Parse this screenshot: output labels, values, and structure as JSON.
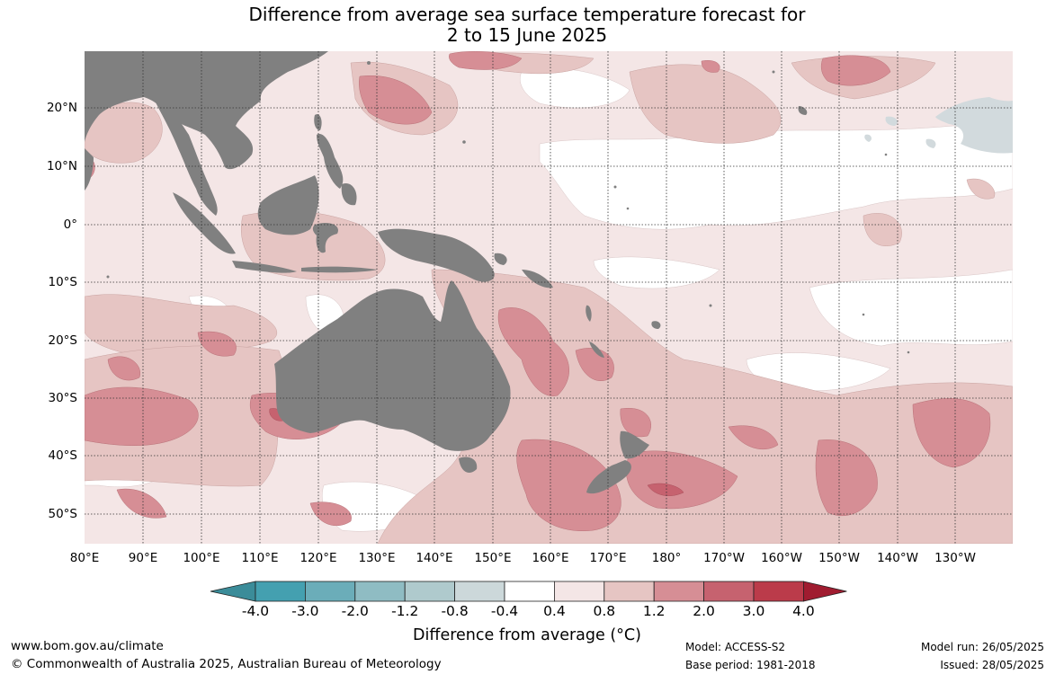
{
  "title": {
    "line1": "Difference from average sea surface temperature forecast for",
    "line2": "2 to 15 June 2025"
  },
  "lat_labels": [
    "20°N",
    "10°N",
    "0°",
    "10°S",
    "20°S",
    "30°S",
    "40°S",
    "50°S"
  ],
  "lon_labels": [
    "80°E",
    "90°E",
    "100°E",
    "110°E",
    "120°E",
    "130°E",
    "140°E",
    "150°E",
    "160°E",
    "170°E",
    "180°",
    "170°W",
    "160°W",
    "150°W",
    "140°W",
    "130°W"
  ],
  "colorbar": {
    "ticks": [
      "-4.0",
      "-3.0",
      "-2.0",
      "-1.2",
      "-0.8",
      "-0.4",
      "0.4",
      "0.8",
      "1.2",
      "2.0",
      "3.0",
      "4.0"
    ],
    "colors": [
      "#44a0b0",
      "#6badb9",
      "#8fbcc3",
      "#afcacd",
      "#ccd8da",
      "#ffffff",
      "#f4e6e6",
      "#e6c5c3",
      "#d68e95",
      "#c6626f",
      "#bb3b4a"
    ],
    "under_color": "#3b8c99",
    "over_color": "#a01c30",
    "label": "Difference from average (°C)"
  },
  "map": {
    "land_color": "#808080",
    "missing_color": "#d2dadd"
  },
  "footer": {
    "website": "www.bom.gov.au/climate",
    "copyright": "© Commonwealth of Australia 2025, Australian Bureau of Meteorology",
    "model": "Model: ACCESS-S2",
    "base_period": "Base period: 1981-2018",
    "model_run": "Model run: 26/05/2025",
    "issued": "Issued: 28/05/2025"
  }
}
